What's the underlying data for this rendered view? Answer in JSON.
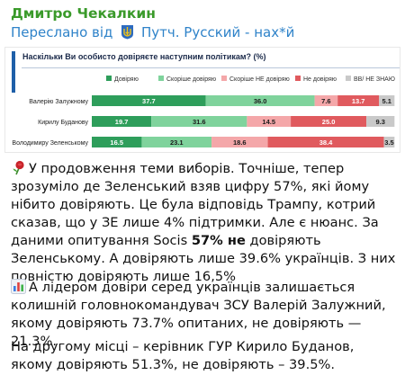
{
  "message": {
    "author": "Дмитро Чекалкин",
    "forward_prefix": "Переслано від",
    "forward_source": "Путч. Русский - нах*й",
    "paragraph1": {
      "part1": "У продовження теми виборів. Точніше, тепер зрозуміло де Зеленський взяв цифру 57%, які йому нібито довіряють. Це була відповідь Трампу, котрий сказав, що у ЗЕ лише 4% підтримки. Але є нюанс. За даними опитування Socis ",
      "bold": "57% не",
      "part2": " довіряють Зеленському. А довіряють лише 39.6% українців. З них повністю довіряють лише 16,5%"
    },
    "paragraph2": "А лідером довіри серед українців залишається колишній головнокомандувач ЗСУ Валерій Залужний, якому довіряють 73.7% опитаних, не довіряють — 21.3%.",
    "paragraph3": "На другому місці – керівник ГУР Кирило Буданов, якому довіряють 51.3%, не довіряють – 39.5%.",
    "icons": {
      "forward_source": "ukraine-coat-of-arms-icon",
      "paragraph1": "rose-icon",
      "paragraph2": "bar-chart-icon"
    }
  },
  "chart_data": {
    "type": "bar",
    "stacked": true,
    "orientation": "horizontal",
    "title": "Наскільки Ви особисто довіряєте наступним політикам? (%)",
    "legend_position": "top",
    "categories": [
      "Валерію Залужному",
      "Кирилу Буданову",
      "Володимиру Зеленському"
    ],
    "series": [
      {
        "name": "Довіряю",
        "color": "#2e9e5b",
        "values": [
          37.7,
          19.7,
          16.5
        ]
      },
      {
        "name": "Скоріше довіряю",
        "color": "#7fd39c",
        "values": [
          36.0,
          31.6,
          23.1
        ]
      },
      {
        "name": "Скоріше НЕ довіряю",
        "color": "#f4a7a9",
        "values": [
          7.6,
          14.5,
          18.6
        ]
      },
      {
        "name": "Не довіряю",
        "color": "#e05a5e",
        "values": [
          13.7,
          25.0,
          38.4
        ]
      },
      {
        "name": "ВВ/ НЕ ЗНАЮ",
        "color": "#c9c9c9",
        "values": [
          5.1,
          9.3,
          3.5
        ]
      }
    ],
    "labels": [
      [
        "37.7",
        "36.0",
        "7.6",
        "13.7",
        "5.1"
      ],
      [
        "19.7",
        "31.6",
        "14.5",
        "25.0",
        "9.3"
      ],
      [
        "16.5",
        "23.1",
        "18.6",
        "38.4",
        "3.5"
      ]
    ],
    "xlim": [
      0,
      100
    ]
  }
}
